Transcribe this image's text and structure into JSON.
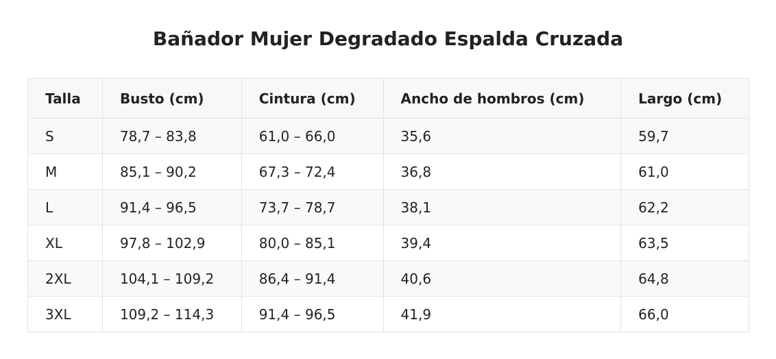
{
  "header": {
    "title": "Bañador Mujer Degradado Espalda Cruzada"
  },
  "table": {
    "columns": [
      "Talla",
      "Busto (cm)",
      "Cintura (cm)",
      "Ancho de hombros (cm)",
      "Largo (cm)"
    ],
    "rows": [
      [
        "S",
        "78,7 – 83,8",
        "61,0 – 66,0",
        "35,6",
        "59,7"
      ],
      [
        "M",
        "85,1 – 90,2",
        "67,3 – 72,4",
        "36,8",
        "61,0"
      ],
      [
        "L",
        "91,4 – 96,5",
        "73,7 – 78,7",
        "38,1",
        "62,2"
      ],
      [
        "XL",
        "97,8 – 102,9",
        "80,0 – 85,1",
        "39,4",
        "63,5"
      ],
      [
        "2XL",
        "104,1 – 109,2",
        "86,4 – 91,4",
        "40,6",
        "64,8"
      ],
      [
        "3XL",
        "109,2 – 114,3",
        "91,4 – 96,5",
        "41,9",
        "66,0"
      ]
    ]
  }
}
